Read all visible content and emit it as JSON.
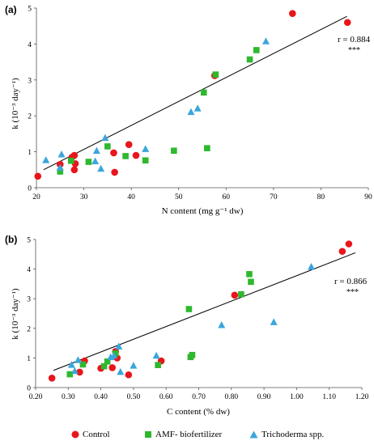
{
  "chart_data": [
    {
      "type": "scatter",
      "panel_label": "(a)",
      "xlabel": "N content (mg g⁻¹ dw)",
      "ylabel": "k (10⁻³ day⁻¹)",
      "xlim": [
        20,
        90
      ],
      "ylim": [
        0,
        5
      ],
      "xticks": [
        "20",
        "30",
        "40",
        "50",
        "60",
        "70",
        "80",
        "90"
      ],
      "yticks": [
        "0",
        "1",
        "2",
        "3",
        "4",
        "5"
      ],
      "grid": false,
      "annotation": "r = 0.884",
      "significance": "***",
      "trendline": {
        "x": [
          21.5,
          85.5
        ],
        "y": [
          0.5,
          4.77
        ]
      },
      "series": [
        {
          "name": "Control",
          "color": "#e8151b",
          "marker": "circle",
          "points": [
            [
              20.3,
              0.32
            ],
            [
              25.0,
              0.65
            ],
            [
              27.5,
              0.85
            ],
            [
              28.0,
              0.9
            ],
            [
              28.0,
              0.5
            ],
            [
              28.2,
              0.67
            ],
            [
              36.3,
              0.97
            ],
            [
              36.5,
              0.43
            ],
            [
              39.5,
              1.2
            ],
            [
              41.0,
              0.9
            ],
            [
              57.6,
              3.12
            ],
            [
              74.0,
              4.85
            ],
            [
              85.6,
              4.6
            ]
          ]
        },
        {
          "name": "AMF- biofertilizer",
          "color": "#2eb82e",
          "marker": "square",
          "points": [
            [
              25.0,
              0.45
            ],
            [
              27.3,
              0.75
            ],
            [
              31.0,
              0.72
            ],
            [
              35.0,
              1.15
            ],
            [
              38.8,
              0.88
            ],
            [
              43.0,
              0.76
            ],
            [
              49.0,
              1.03
            ],
            [
              55.3,
              2.65
            ],
            [
              56.0,
              1.1
            ],
            [
              57.8,
              3.15
            ],
            [
              65.0,
              3.57
            ],
            [
              66.4,
              3.83
            ]
          ]
        },
        {
          "name": "Trichoderma spp.",
          "color": "#3aa6dc",
          "marker": "triangle",
          "points": [
            [
              22.0,
              0.76
            ],
            [
              25.0,
              0.55
            ],
            [
              25.3,
              0.92
            ],
            [
              32.4,
              0.73
            ],
            [
              32.7,
              1.02
            ],
            [
              33.6,
              0.52
            ],
            [
              34.5,
              1.38
            ],
            [
              43.0,
              1.07
            ],
            [
              52.6,
              2.1
            ],
            [
              54.0,
              2.2
            ],
            [
              68.4,
              4.07
            ]
          ]
        }
      ]
    },
    {
      "type": "scatter",
      "panel_label": "(b)",
      "xlabel": "C content (% dw)",
      "ylabel": "k (10⁻³ day⁻¹)",
      "xlim": [
        0.2,
        1.2
      ],
      "ylim": [
        0,
        5
      ],
      "xticks": [
        "0.20",
        "0.30",
        "0.40",
        "0.50",
        "0.60",
        "0.70",
        "0.80",
        "0.90",
        "1.00",
        "1.10",
        "1.20"
      ],
      "yticks": [
        "0",
        "1",
        "2",
        "3",
        "4",
        "5"
      ],
      "grid": false,
      "annotation": "r = 0.866",
      "significance": "***",
      "trendline": {
        "x": [
          0.255,
          1.18
        ],
        "y": [
          0.58,
          4.55
        ]
      },
      "series": [
        {
          "name": "Control",
          "color": "#e8151b",
          "marker": "circle",
          "points": [
            [
              0.25,
              0.32
            ],
            [
              0.335,
              0.52
            ],
            [
              0.35,
              0.9
            ],
            [
              0.4,
              0.65
            ],
            [
              0.435,
              0.67
            ],
            [
              0.445,
              1.22
            ],
            [
              0.45,
              1.0
            ],
            [
              0.485,
              0.43
            ],
            [
              0.585,
              0.9
            ],
            [
              0.81,
              3.12
            ],
            [
              1.14,
              4.6
            ],
            [
              1.16,
              4.85
            ]
          ]
        },
        {
          "name": "AMF- biofertilizer",
          "color": "#2eb82e",
          "marker": "square",
          "points": [
            [
              0.305,
              0.45
            ],
            [
              0.345,
              0.78
            ],
            [
              0.41,
              0.72
            ],
            [
              0.42,
              0.88
            ],
            [
              0.445,
              1.15
            ],
            [
              0.575,
              0.76
            ],
            [
              0.67,
              2.65
            ],
            [
              0.675,
              1.03
            ],
            [
              0.68,
              1.1
            ],
            [
              0.83,
              3.15
            ],
            [
              0.855,
              3.83
            ],
            [
              0.86,
              3.57
            ]
          ]
        },
        {
          "name": "Trichoderma spp.",
          "color": "#3aa6dc",
          "marker": "triangle",
          "points": [
            [
              0.31,
              0.76
            ],
            [
              0.33,
              0.92
            ],
            [
              0.32,
              0.55
            ],
            [
              0.43,
              1.02
            ],
            [
              0.44,
              1.07
            ],
            [
              0.455,
              1.38
            ],
            [
              0.46,
              0.52
            ],
            [
              0.5,
              0.73
            ],
            [
              0.57,
              1.07
            ],
            [
              0.77,
              2.1
            ],
            [
              0.93,
              2.2
            ],
            [
              1.045,
              4.07
            ]
          ]
        }
      ]
    }
  ],
  "legend": {
    "items": [
      {
        "label": "Control",
        "color": "#e8151b",
        "marker": "circle"
      },
      {
        "label": "AMF- biofertilizer",
        "color": "#2eb82e",
        "marker": "square"
      },
      {
        "label": "Trichoderma spp.",
        "color": "#3aa6dc",
        "marker": "triangle"
      }
    ]
  }
}
